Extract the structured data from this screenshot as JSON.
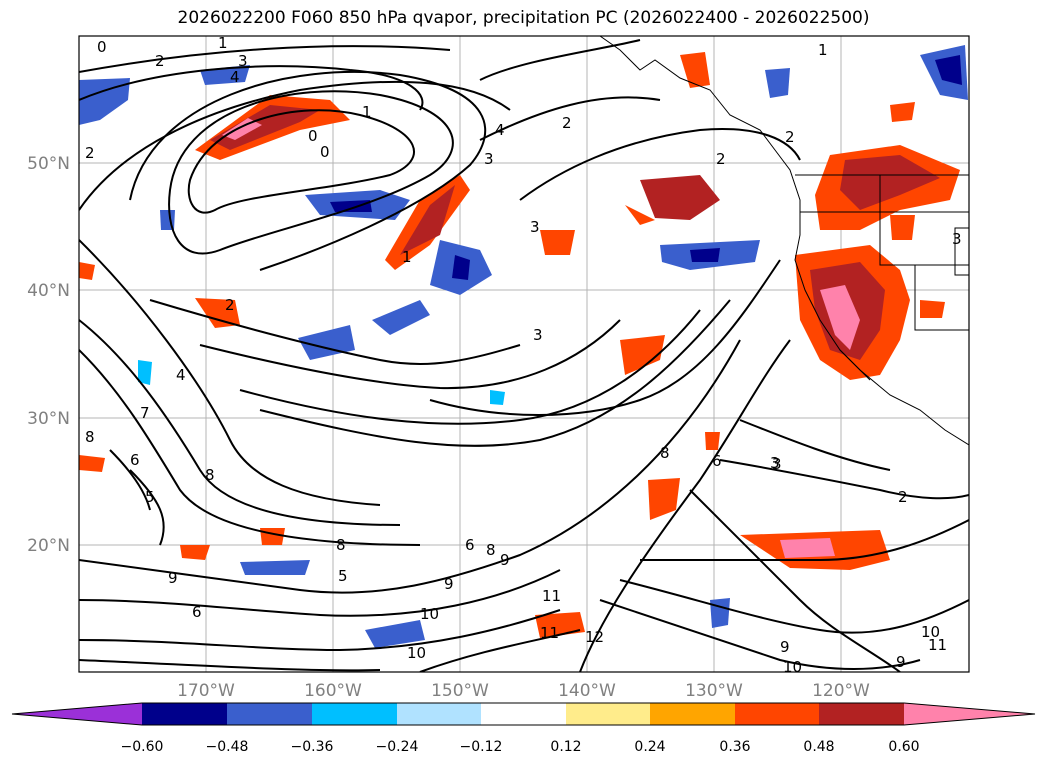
{
  "title": "2026022200 F060 850 hPa qvapor, precipitation PC (2026022400 - 2026022500)",
  "map": {
    "lat_labels": [
      "50°N",
      "40°N",
      "30°N",
      "20°N"
    ],
    "lon_labels": [
      "170°W",
      "160°W",
      "150°W",
      "140°W",
      "130°W",
      "120°W"
    ],
    "contour_labels": [
      "0",
      "1",
      "2",
      "3",
      "4",
      "2",
      "1",
      "0",
      "0",
      "1",
      "4",
      "2",
      "3",
      "2",
      "1",
      "3",
      "2",
      "3",
      "3",
      "5",
      "6",
      "7",
      "8",
      "8",
      "9",
      "6",
      "5",
      "9",
      "9",
      "6",
      "8",
      "8",
      "10",
      "10",
      "11",
      "11",
      "12",
      "6",
      "3",
      "2",
      "9",
      "10",
      "11",
      "10",
      "9",
      "4",
      "8",
      "2",
      "3"
    ]
  },
  "colorbar": {
    "ticks": [
      "−0.60",
      "−0.48",
      "−0.36",
      "−0.24",
      "−0.12",
      "0.12",
      "0.24",
      "0.36",
      "0.48",
      "0.60"
    ],
    "colors": [
      "#9b30d8",
      "#00008b",
      "#3a5fcd",
      "#00bfff",
      "#b0e2ff",
      "#ffffff",
      "#ffec8b",
      "#ffa500",
      "#ff4500",
      "#b22222",
      "#ff82ab"
    ]
  }
}
